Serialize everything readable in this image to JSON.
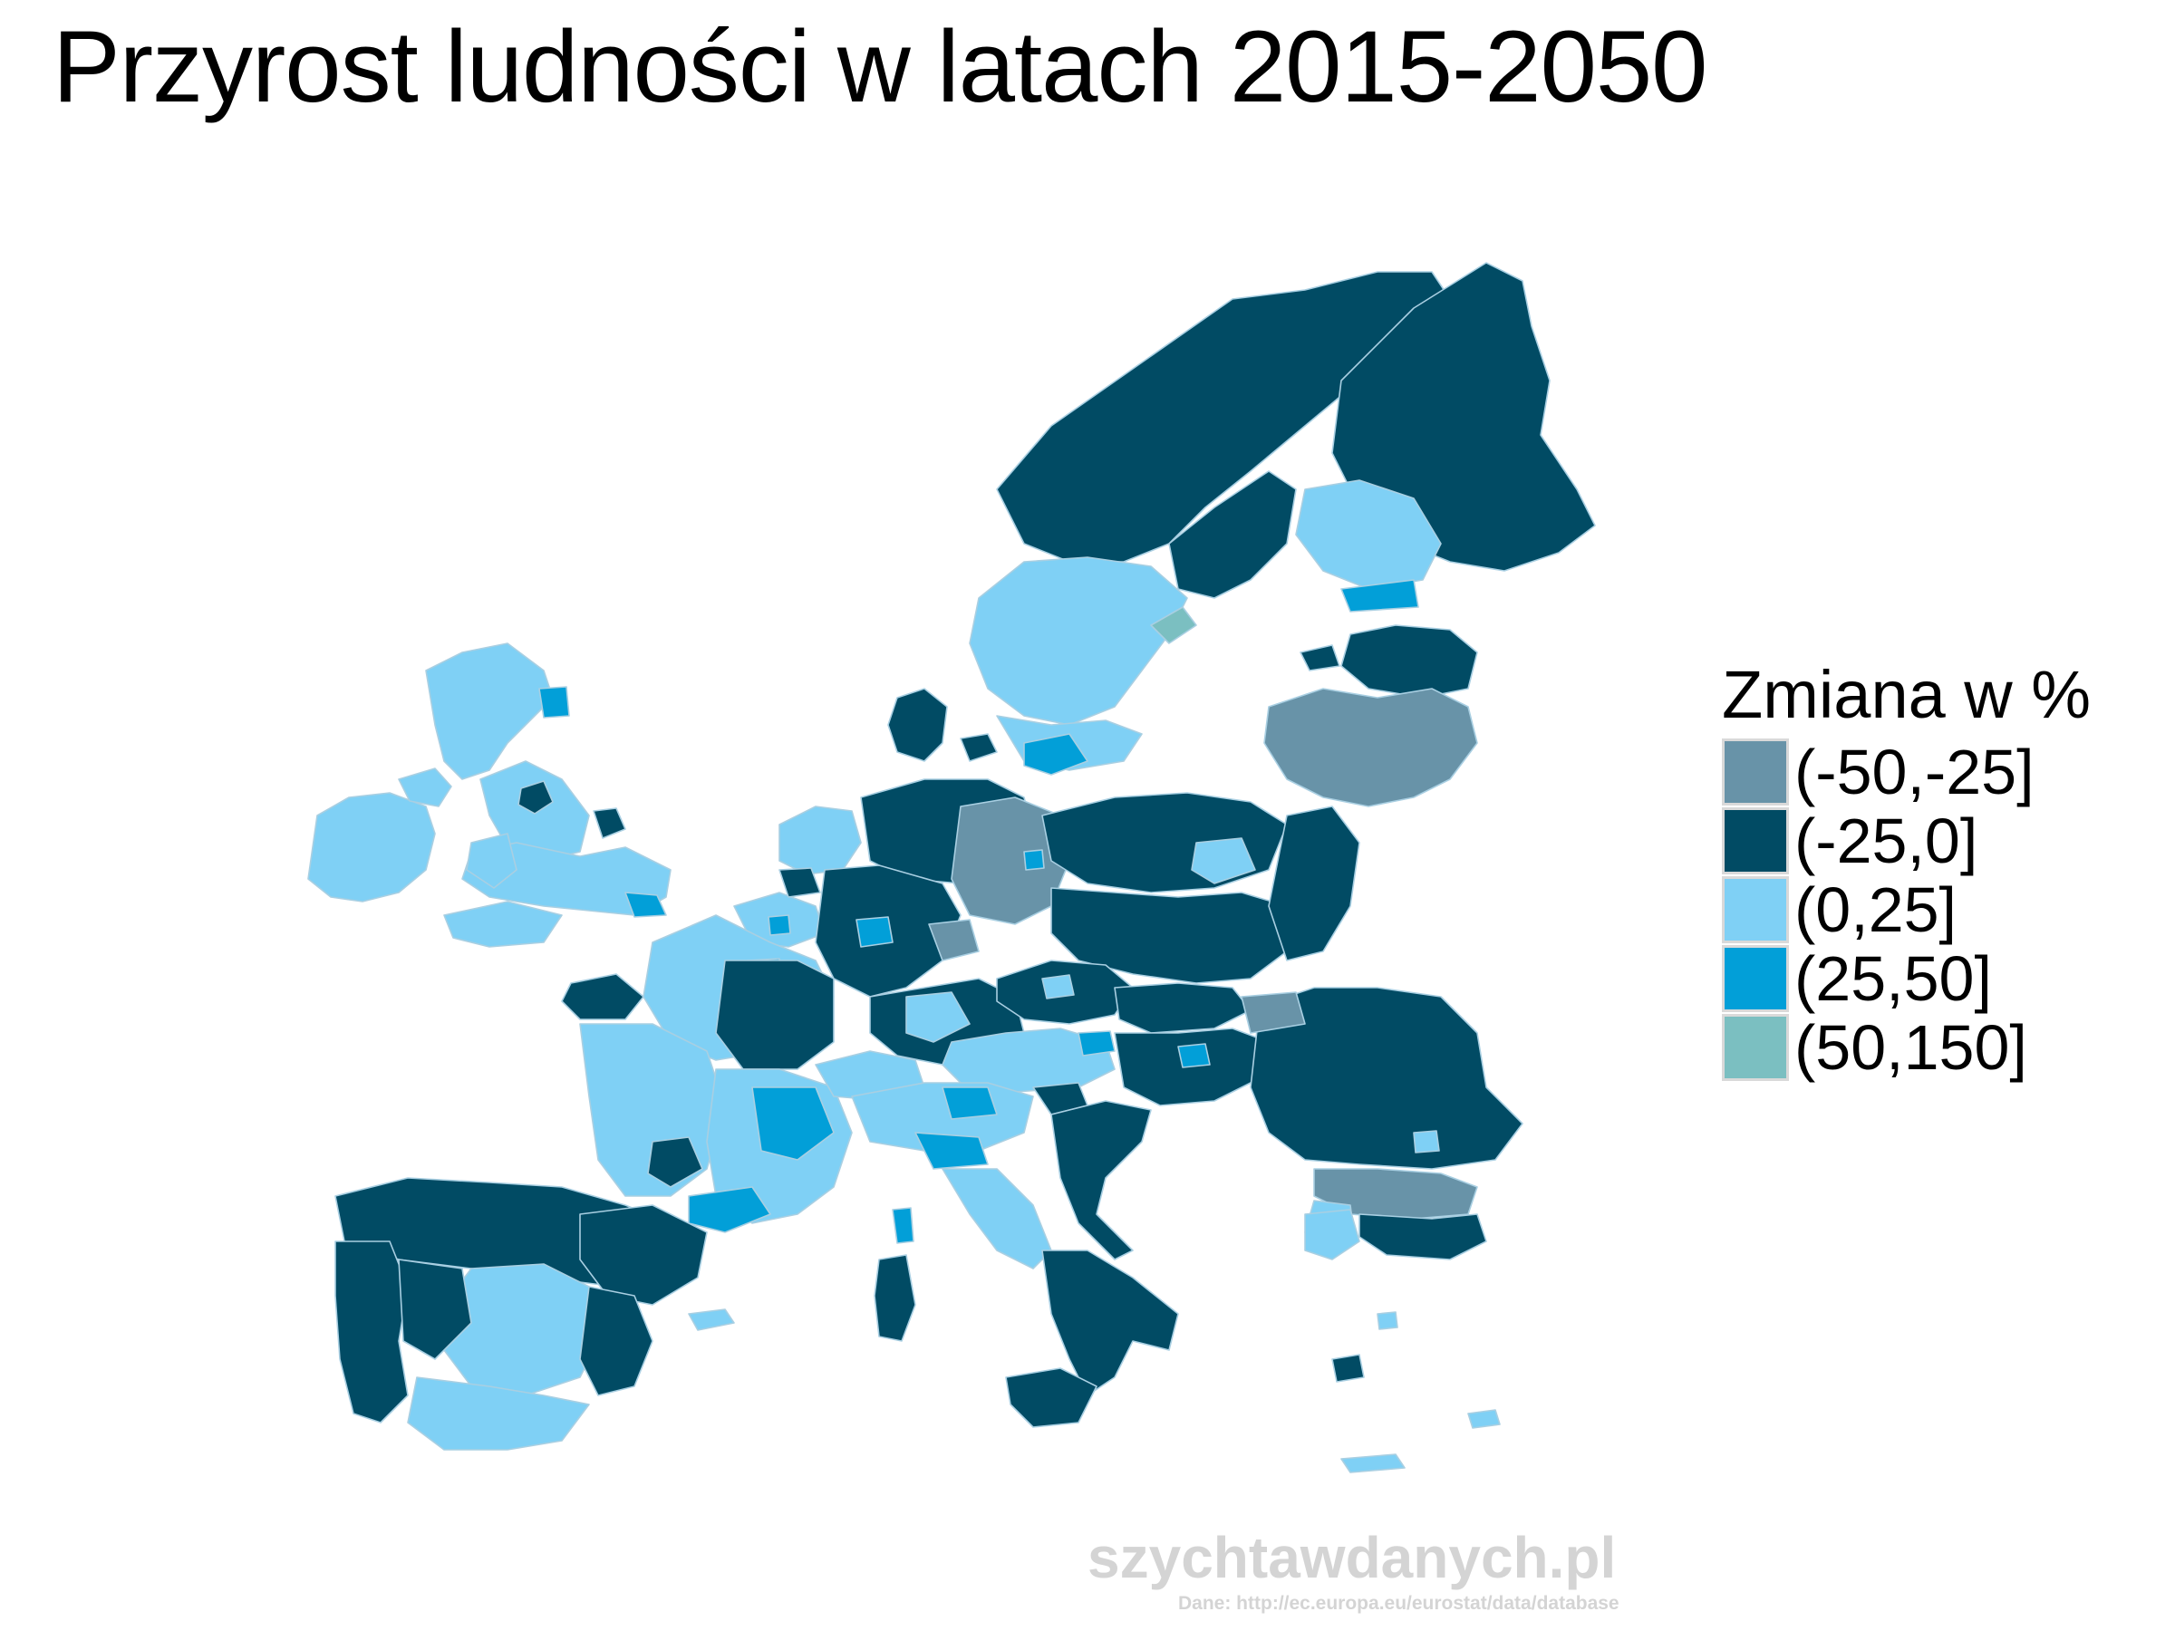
{
  "title": "Przyrost ludności w latach 2015-2050",
  "legend": {
    "title": "Zmiana w %",
    "items": [
      {
        "label": "(-50,-25]",
        "color": "#6893a8"
      },
      {
        "label": "(-25,0]",
        "color": "#014b64"
      },
      {
        "label": "(0,25]",
        "color": "#7fd0f5"
      },
      {
        "label": "(25,50]",
        "color": "#029fd8"
      },
      {
        "label": "(50,150]",
        "color": "#7bbfc1"
      }
    ]
  },
  "watermark": "szychtawdanych.pl",
  "source": "Dane: http://ec.europa.eu/eurostat/data/database",
  "map": {
    "background": "#ffffff",
    "border_color": "#a9cfe2"
  }
}
